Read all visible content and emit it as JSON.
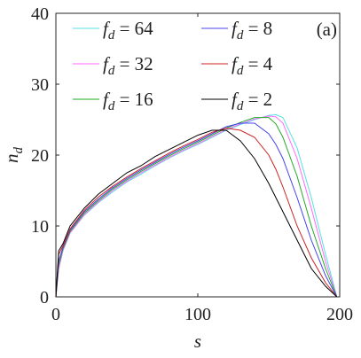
{
  "chart_data": {
    "type": "line",
    "annotation": "(a)",
    "xlabel": "s",
    "ylabel": "nd",
    "x": [
      0,
      2,
      5,
      10,
      20,
      30,
      40,
      50,
      60,
      70,
      80,
      90,
      100,
      110,
      120,
      130,
      140,
      150,
      155,
      160,
      170,
      180,
      190,
      198
    ],
    "xlim": [
      0,
      200
    ],
    "xticks": [
      0,
      100,
      200
    ],
    "ylim": [
      0,
      40
    ],
    "yticks": [
      0,
      10,
      20,
      30,
      40
    ],
    "series": [
      {
        "name": "fd = 64",
        "color": "#55e0e0",
        "values": [
          0,
          4,
          6.5,
          9,
          11.5,
          13.3,
          14.8,
          16.2,
          17.3,
          18.5,
          19.6,
          20.6,
          21.5,
          22.5,
          23.5,
          24.3,
          25,
          25.6,
          25.7,
          25.3,
          21,
          14,
          6,
          0
        ]
      },
      {
        "name": "fd = 32",
        "color": "#ff66ff",
        "values": [
          0,
          4,
          6.6,
          9,
          11.6,
          13.4,
          15,
          16.3,
          17.5,
          18.6,
          19.7,
          20.7,
          21.6,
          22.6,
          23.6,
          24.4,
          25.1,
          25.5,
          25.4,
          24.5,
          19.5,
          12.5,
          5,
          0
        ]
      },
      {
        "name": "fd = 16",
        "color": "#22aa22",
        "values": [
          0,
          4.5,
          6.8,
          9.2,
          11.8,
          13.6,
          15.2,
          16.5,
          17.7,
          18.8,
          19.9,
          20.9,
          21.8,
          22.8,
          23.8,
          24.6,
          25.3,
          25.3,
          24.4,
          22.5,
          17,
          10,
          4,
          0
        ]
      },
      {
        "name": "fd = 8",
        "color": "#4444ee",
        "values": [
          0,
          5,
          7,
          9.4,
          12,
          13.8,
          15.4,
          16.7,
          17.9,
          19,
          20.1,
          21.1,
          22,
          23,
          24,
          24.5,
          24.5,
          23,
          21.5,
          19.5,
          14,
          8,
          3,
          0
        ]
      },
      {
        "name": "fd = 4",
        "color": "#cc2222",
        "values": [
          0,
          6,
          7.2,
          9.6,
          12.2,
          14.1,
          15.6,
          16.9,
          18.1,
          19.2,
          20.3,
          21.3,
          22.2,
          23.2,
          23.8,
          23.5,
          22.5,
          20,
          18,
          15.5,
          10,
          5.5,
          2,
          0
        ]
      },
      {
        "name": "fd = 2",
        "color": "#000000",
        "values": [
          0,
          6.5,
          7.5,
          10,
          12.5,
          14.5,
          16,
          17.5,
          18.5,
          19.8,
          20.8,
          21.8,
          22.8,
          23.5,
          23.5,
          22,
          19.5,
          16,
          14,
          12,
          8,
          4,
          1.5,
          0
        ]
      }
    ]
  }
}
